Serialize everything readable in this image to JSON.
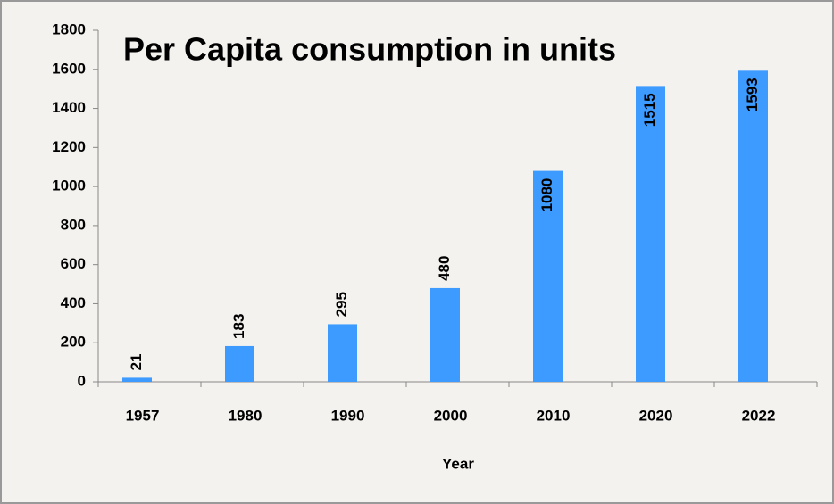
{
  "chart_data": {
    "type": "bar",
    "title": "Per Capita consumption in units",
    "x_label": "Year",
    "categories": [
      "1957",
      "1980",
      "1990",
      "2000",
      "2010",
      "2020",
      "2022"
    ],
    "values": [
      21,
      183,
      295,
      480,
      1080,
      1515,
      1593
    ],
    "color": "#3d9bff",
    "ylim": [
      0,
      1800
    ],
    "yticks": [
      0,
      200,
      400,
      600,
      800,
      1000,
      1200,
      1400,
      1600,
      1800
    ],
    "grid": false
  }
}
